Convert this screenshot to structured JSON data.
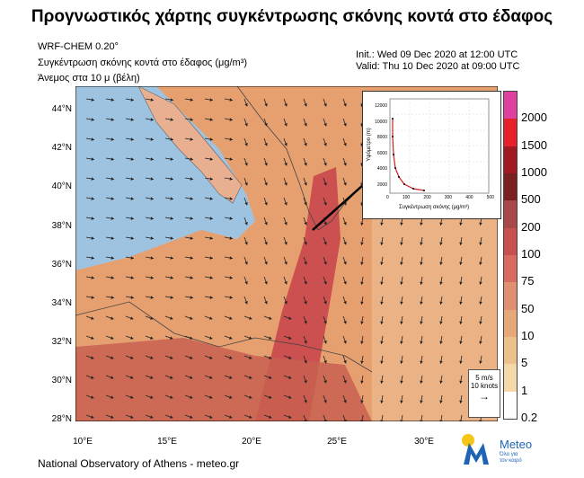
{
  "title": "Προγνωστικός χάρτης συγκέντρωσης σκόνης κοντά στο έδαφος",
  "model": "WRF-CHEM 0.20°",
  "field": "Συγκέντρωση σκόνης κοντά στο έδαφος (μg/m³)",
  "wind": "Άνεμος στα 10 μ (βέλη)",
  "init": "Init.:  Wed 09 Dec 2020 at 12:00 UTC",
  "valid": "Valid: Thu 10 Dec 2020 at 09:00 UTC",
  "lat_labels": [
    "44°N",
    "42°N",
    "40°N",
    "38°N",
    "36°N",
    "34°N",
    "32°N",
    "30°N",
    "28°N"
  ],
  "lon_labels": [
    "10°E",
    "15°E",
    "20°E",
    "25°E",
    "30°E"
  ],
  "colorbar": {
    "levels": [
      "2000",
      "1500",
      "1000",
      "500",
      "200",
      "100",
      "75",
      "50",
      "10",
      "5",
      "1",
      "0.2"
    ],
    "colors": [
      "#e040a0",
      "#e8202a",
      "#a01820",
      "#7a2020",
      "#a84848",
      "#c85050",
      "#d86a60",
      "#e09070",
      "#e6a878",
      "#edc08c",
      "#f4d8a8",
      "#ffffff"
    ]
  },
  "inset": {
    "ylabel": "Υψόμετρο (m)",
    "xlabel": "Συγκέντρωση σκόνης (μg/m³)",
    "yticks": [
      "12000",
      "10000",
      "8000",
      "6000",
      "4000",
      "2000",
      "0"
    ],
    "xticks": [
      "0",
      "100",
      "200",
      "300",
      "400",
      "500"
    ]
  },
  "vector_legend": {
    "line1": "5 m/s",
    "line2": "10 knots"
  },
  "footer": "National Observatory of Athens - meteo.gr",
  "logo": {
    "name": "Meteo",
    "tagline1": "Όλα για",
    "tagline2": "τον καιρό",
    "color": "#1e63b5",
    "sun": "#f5c518"
  }
}
